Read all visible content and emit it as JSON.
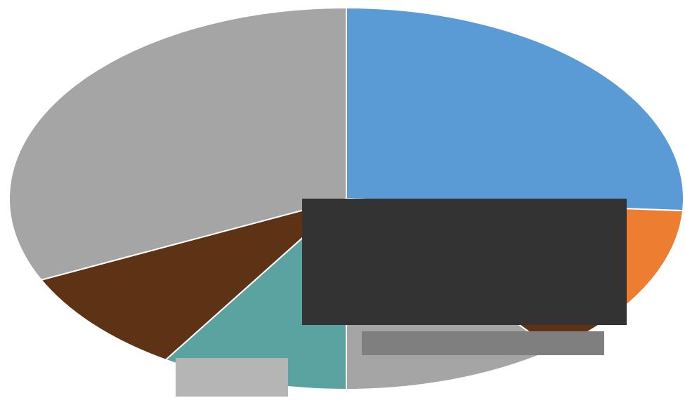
{
  "chart_data": {
    "type": "pie",
    "style": "3d-ellipse",
    "title": "",
    "legend": "none",
    "data_labels": "none",
    "slices": [
      {
        "label": "",
        "value": 26.0,
        "color": "#5B9BD5"
      },
      {
        "label": "",
        "value": 10.5,
        "color": "#ED7D31"
      },
      {
        "label": "",
        "value": 3.0,
        "color": "#5E3214"
      },
      {
        "label": "",
        "value": 10.5,
        "color": "#A5A5A5"
      },
      {
        "label": "",
        "value": 9.0,
        "color": "#5BA3A0"
      },
      {
        "label": "",
        "value": 9.0,
        "color": "#5E3214"
      },
      {
        "label": "",
        "value": 32.0,
        "color": "#A5A5A5"
      }
    ],
    "artifacts": [
      {
        "label": "",
        "color": "#333333"
      },
      {
        "label": "",
        "color": "#7F7F7F"
      }
    ]
  }
}
